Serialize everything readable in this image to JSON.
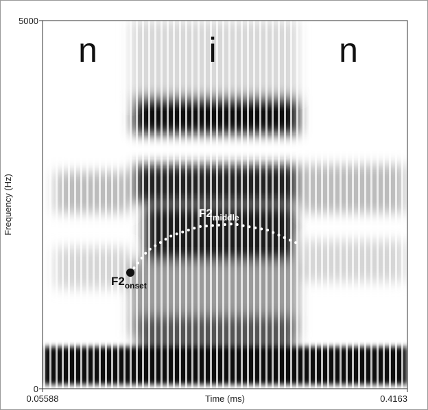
{
  "chart_data": {
    "type": "spectrogram",
    "x_label": "Time (ms)",
    "y_label": "Frequency (Hz)",
    "xlim": [
      0.05588,
      0.4163
    ],
    "xticks": [
      0.05588,
      0.4163
    ],
    "ylim": [
      0,
      5000
    ],
    "yticks": [
      0,
      5000
    ],
    "segments": [
      "n",
      "i",
      "n"
    ],
    "series": [
      {
        "name": "F2",
        "color": "#ffffff",
        "x": [
          0.1426,
          0.1596,
          0.1833,
          0.2104,
          0.2442,
          0.2781,
          0.3086
        ],
        "values": [
          1576,
          1875,
          2080,
          2201,
          2239,
          2155,
          1968
        ]
      }
    ],
    "annotations": [
      {
        "text": "F2",
        "subscript": "onset"
      },
      {
        "text": "F2",
        "subscript": "middle"
      }
    ]
  }
}
